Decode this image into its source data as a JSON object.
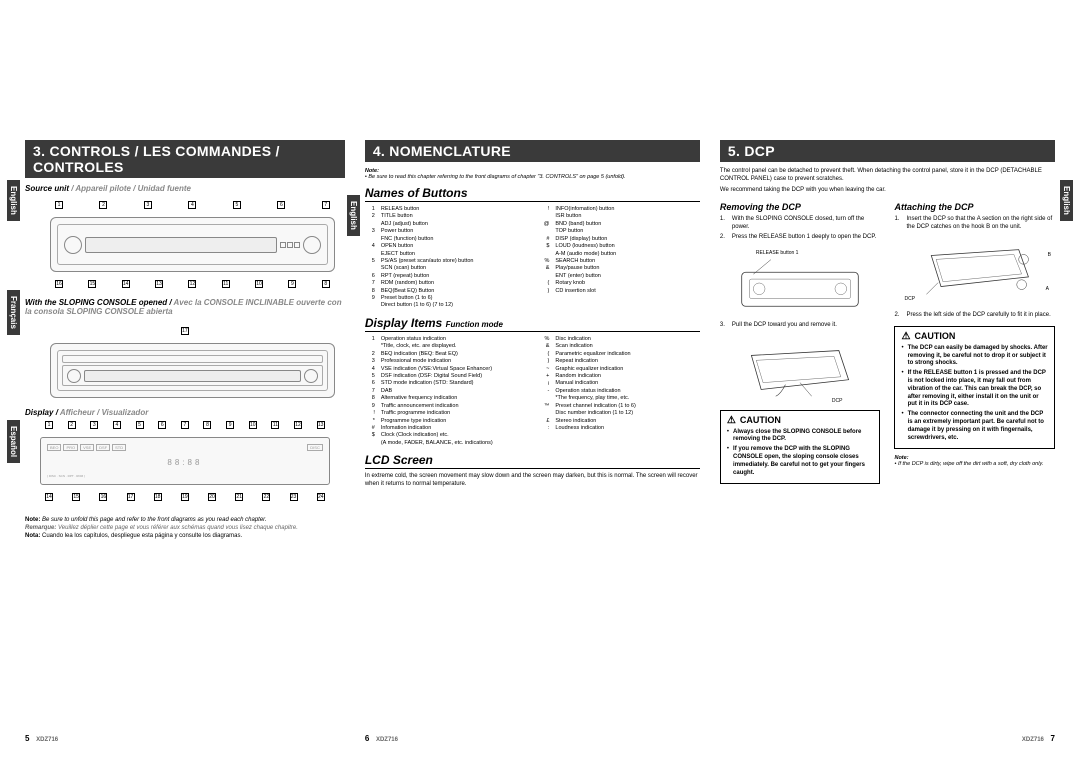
{
  "col1": {
    "header": "3. CONTROLS / LES COMMANDES / CONTROLES",
    "sourceLine": {
      "en": "Source unit",
      "sep": " / ",
      "fr": "Appareil pilote",
      "es": "Unidad fuente"
    },
    "langTabs": {
      "en": "English",
      "fr": "Français",
      "es": "Español"
    },
    "topCallouts": [
      "1",
      "2",
      "3",
      "4",
      "5",
      "6",
      "7"
    ],
    "botCallouts": [
      "16",
      "15",
      "14",
      "13",
      "12",
      "11",
      "10",
      "9",
      "8"
    ],
    "slopingNote": {
      "en": "With the SLOPING CONSOLE opened",
      "fr": "Avec la CONSOLE INCLINABLE ouverte",
      "es": "con la consola SLOPING CONSOLE abierta"
    },
    "co17": "17",
    "displayLabel": {
      "en": "Display",
      "fr": "Afficheur",
      "es": "Visualizador"
    },
    "d3Top": [
      "1",
      "2",
      "3",
      "4",
      "5",
      "6",
      "7",
      "8",
      "9",
      "10",
      "11",
      "12",
      "13"
    ],
    "d3Bot": [
      "14",
      "15",
      "16",
      "17",
      "18",
      "19",
      "20",
      "21",
      "22",
      "23",
      "24"
    ],
    "notes": {
      "n1b": "Note:",
      "n1": "Be sure to unfold this page and refer to the front diagrams as you read each chapter.",
      "n2b": "Remarque:",
      "n2": "Veuillez déplier cette page et vous référer aux schémas quand vous lisez chaque chapitre.",
      "n3b": "Nota:",
      "n3": "Cuando lea los capítulos, despliegue esta página y consulte los diagramas."
    },
    "pageNum": "5",
    "model": "XDZ716"
  },
  "col2": {
    "header": "4. NOMENCLATURE",
    "noteLabel": "Note:",
    "noteText": "Be sure to read this chapter referring to the front diagrams of chapter \"3. CONTROLS\" on page 5 (unfold).",
    "sub1": "Names of Buttons",
    "langTab": "English",
    "buttonsL": [
      [
        "1",
        "RELEAS button"
      ],
      [
        "2",
        "TITLE button"
      ],
      [
        "",
        "ADJ (adjust) button"
      ],
      [
        "3",
        "Power button"
      ],
      [
        "",
        "FNC (function) button"
      ],
      [
        "4",
        "OPEN button"
      ],
      [
        "",
        "EJECT button"
      ],
      [
        "5",
        "PS/AS (preset scan/auto store) button"
      ],
      [
        "",
        "SCN (scan) button"
      ],
      [
        "6",
        "RPT (repeat) button"
      ],
      [
        "7",
        "RDM (random) button"
      ],
      [
        "8",
        "BEQ(Beat EQ) Button"
      ],
      [
        "9",
        "Preset button (1 to 6)"
      ],
      [
        "",
        "Direct button (1 to 6) (7 to 12)"
      ]
    ],
    "buttonsR": [
      [
        "!",
        "INFO(infomation) button"
      ],
      [
        "",
        "ISR button"
      ],
      [
        "@",
        "BND (band) button"
      ],
      [
        "",
        "TOP button"
      ],
      [
        "#",
        "DISP (display) button"
      ],
      [
        "$",
        "LOUD (loudness) button"
      ],
      [
        "",
        "A-M (audio mode) button"
      ],
      [
        "%",
        "SEARCH button"
      ],
      [
        "&",
        "Play/pause button"
      ],
      [
        "",
        "ENT (enter) button"
      ],
      [
        "(",
        "Rotary knob"
      ],
      [
        ")",
        "CD insertion slot"
      ]
    ],
    "sub2": "Display Items",
    "sub2s": "Function mode",
    "dispL": [
      [
        "1",
        "Operation status indication"
      ],
      [
        "",
        "*Title, clock, etc. are displayed."
      ],
      [
        "2",
        "BEQ indication (BEQ: Beat EQ)"
      ],
      [
        "3",
        "Professional mode indication"
      ],
      [
        "4",
        "VSE indication (VSE:Virtual Space Enhancer)"
      ],
      [
        "5",
        "DSF indication (DSF: Digital Sound Field)"
      ],
      [
        "6",
        "STD mode indication (STD: Standard)"
      ],
      [
        "7",
        "DAB"
      ],
      [
        "8",
        "Alternative frequency indication"
      ],
      [
        "9",
        "Traffic announcement indication"
      ],
      [
        "!",
        "Traffic programme indication"
      ],
      [
        "*",
        "Programme type indication"
      ],
      [
        "#",
        "Infomation indication"
      ],
      [
        "$",
        "Clock (Clock indication) etc."
      ],
      [
        "",
        "(A mode, FADER, BALANCE, etc. indications)"
      ]
    ],
    "dispR": [
      [
        "%",
        "Disc indication"
      ],
      [
        "&",
        "Scan indication"
      ],
      [
        "(",
        "Parametric equalizer indication"
      ],
      [
        ")",
        "Repeat indication"
      ],
      [
        "~",
        "Graphic equalizer indication"
      ],
      [
        "+",
        "Random indication"
      ],
      [
        "¡",
        "Manual indication"
      ],
      [
        "-",
        "Operation status indication"
      ],
      [
        "",
        "*The frequency, play time, etc."
      ],
      [
        "™",
        "Preset channel indication (1 to 6)"
      ],
      [
        "",
        "Disc number indication (1 to 12)"
      ],
      [
        "£",
        "Stereo indication"
      ],
      [
        ":",
        "Loudness indication"
      ]
    ],
    "sub3": "LCD Screen",
    "lcd": "In extreme cold, the screen movement may slow down and the screen may darken, but this is normal. The screen will recover when it returns to normal temperature.",
    "pageNum": "6",
    "model": "XDZ716"
  },
  "col3": {
    "header": "5. DCP",
    "intro1": "The control panel can be detached to prevent theft. When detaching the control panel, store it in the DCP (DETACHABLE CONTROL PANEL) case to prevent scratches.",
    "intro2": "We recommend taking the DCP with you when leaving the car.",
    "removeH": "Removing the DCP",
    "removeSteps": [
      [
        "1.",
        "With the SLOPING CONSOLE closed, turn off the power."
      ],
      [
        "2.",
        "Press the RELEASE button 1  deeply to open the DCP."
      ]
    ],
    "relLabel": "RELEASE button 1",
    "removeStep3n": "3.",
    "removeStep3": "Pull the DCP toward you and remove it.",
    "dcpLabel": "DCP",
    "caution1H": "CAUTION",
    "caution1": [
      "Always close the SLOPING CONSOLE before removing the DCP.",
      "If you remove the DCP with the SLOPING CONSOLE open, the sloping console closes immediately. Be careful not to get your fingers caught."
    ],
    "attachH": "Attaching the DCP",
    "attachSteps": [
      [
        "1.",
        "Insert the DCP so that the A  section on the right side of the DCP catches on the hook B  on the unit."
      ]
    ],
    "labA": "A",
    "labB": "B",
    "labDCP": "DCP",
    "attachStep2n": "2.",
    "attachStep2": "Press the left side of the DCP carefully to fit it in place.",
    "caution2H": "CAUTION",
    "caution2": [
      "The DCP can easily be damaged by shocks. After removing it, be careful not to drop it or subject it to strong shocks.",
      "If the RELEASE button 1  is pressed and the DCP is not locked into place, it may fall out from vibration of the car. This can break the DCP, so after removing it, either install it on the unit or put it in its DCP case.",
      "The connector connecting the unit and the DCP is an extremely important part. Be careful not to damage it by pressing on it with fingernails, screwdrivers, etc."
    ],
    "noteLabel": "Note:",
    "noteText": "If the DCP is dirty, wipe off the dirt with a soft, dry cloth only.",
    "langTab": "English",
    "pageNum": "7",
    "model": "XDZ716"
  }
}
